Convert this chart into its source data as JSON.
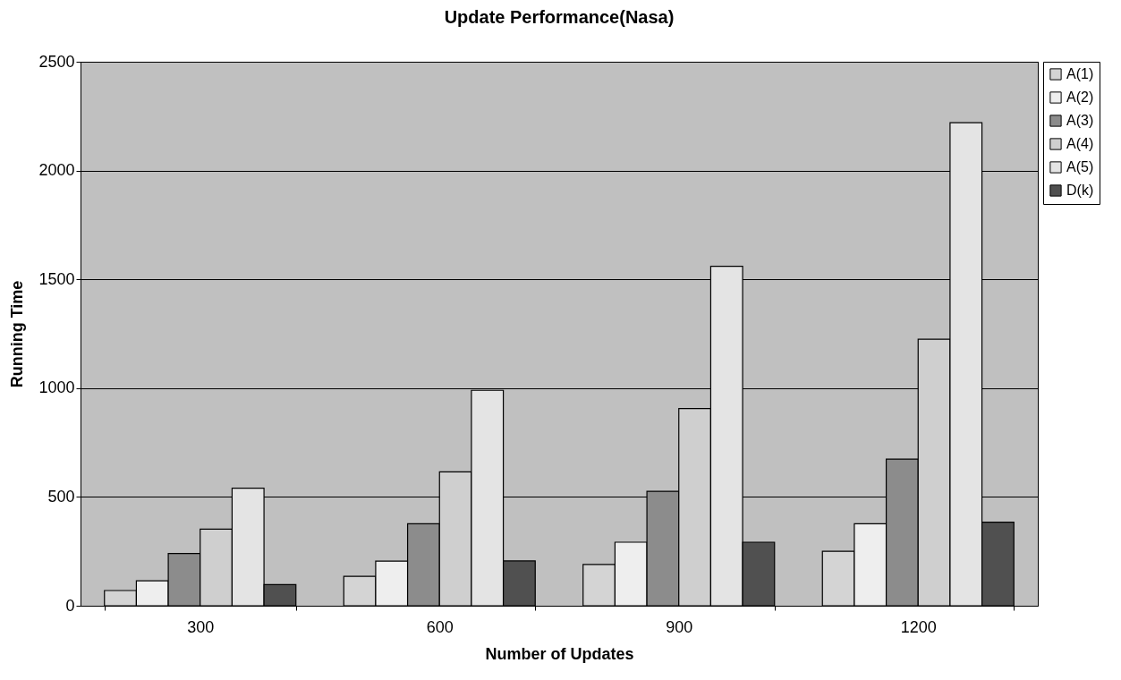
{
  "chart_data": {
    "type": "bar",
    "title": "Update Performance(Nasa)",
    "xlabel": "Number of Updates",
    "ylabel": "Running Time",
    "categories": [
      "300",
      "600",
      "900",
      "1200"
    ],
    "series": [
      {
        "name": "A(1)",
        "color": "#d4d4d4",
        "values": [
          70,
          135,
          190,
          250
        ]
      },
      {
        "name": "A(2)",
        "color": "#eeeeee",
        "values": [
          115,
          205,
          292,
          377
        ]
      },
      {
        "name": "A(3)",
        "color": "#8c8c8c",
        "values": [
          240,
          377,
          526,
          674
        ]
      },
      {
        "name": "A(4)",
        "color": "#cfcfcf",
        "values": [
          352,
          615,
          906,
          1225
        ]
      },
      {
        "name": "A(5)",
        "color": "#e4e4e4",
        "values": [
          540,
          990,
          1560,
          2220
        ]
      },
      {
        "name": "D(k)",
        "color": "#505050",
        "values": [
          97,
          206,
          292,
          384
        ]
      }
    ],
    "ylim": [
      0,
      2500
    ],
    "yticks": [
      0,
      500,
      1000,
      1500,
      2000,
      2500
    ],
    "grid": "y",
    "legend": "right"
  }
}
